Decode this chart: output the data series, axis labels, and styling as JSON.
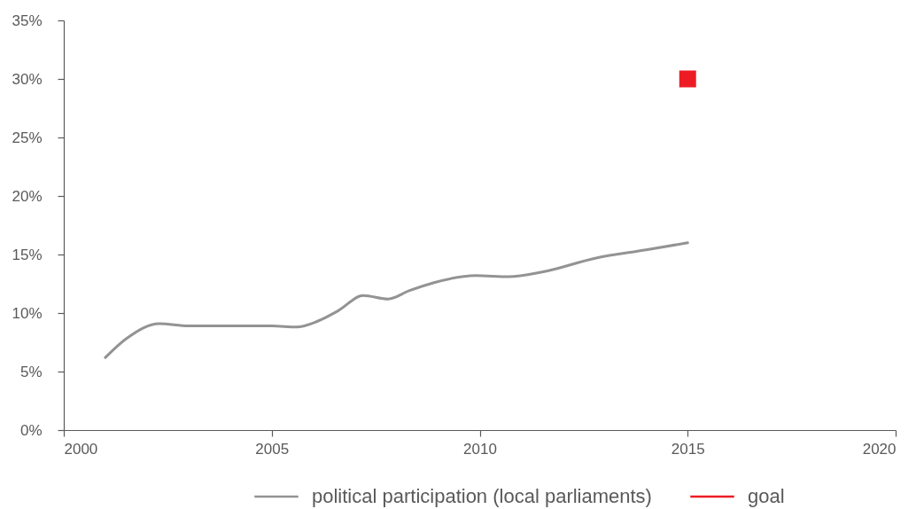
{
  "chart_data": {
    "type": "line",
    "series": [
      {
        "name": "political participation (local parliaments)",
        "color": "#939393",
        "x": [
          2001,
          2001.5,
          2002.3,
          2003,
          2004,
          2005,
          2005.6,
          2006.1,
          2006.6,
          2007.2,
          2007.8,
          2008.3,
          2008.9,
          2009.9,
          2010.7,
          2011.5,
          2012.8,
          2014,
          2015
        ],
        "values": [
          6.2,
          7.8,
          9.1,
          8.9,
          8.9,
          8.9,
          8.8,
          9.3,
          10.2,
          11.5,
          11.2,
          11.9,
          12.6,
          13.2,
          13.1,
          13.5,
          14.7,
          15.4,
          16.0
        ]
      },
      {
        "name": "goal",
        "type": "scatter",
        "marker": "square",
        "color": "#ed1c24",
        "x": [
          2015
        ],
        "values": [
          30
        ]
      }
    ],
    "xlim": [
      2000,
      2020
    ],
    "xticks": [
      2000,
      2005,
      2010,
      2015,
      2020
    ],
    "ylim": [
      0,
      35
    ],
    "yticks": [
      {
        "value": 0,
        "label": "0%"
      },
      {
        "value": 5,
        "label": "5%"
      },
      {
        "value": 10,
        "label": "10%"
      },
      {
        "value": 15,
        "label": "15%"
      },
      {
        "value": 20,
        "label": "20%"
      },
      {
        "value": 25,
        "label": "25%"
      },
      {
        "value": 30,
        "label": "30%"
      },
      {
        "value": 35,
        "label": "35%"
      }
    ],
    "legend": "bottom"
  }
}
